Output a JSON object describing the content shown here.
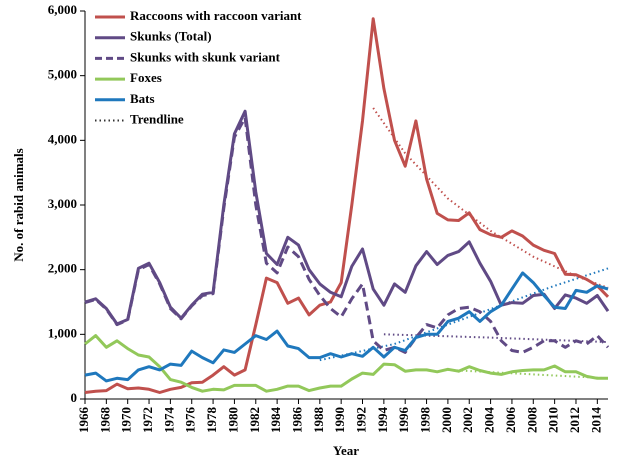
{
  "chart_data": {
    "type": "line",
    "x_label": "Year",
    "y_label": "No. of rabid animals",
    "x": [
      1966,
      1967,
      1968,
      1969,
      1970,
      1971,
      1972,
      1973,
      1974,
      1975,
      1976,
      1977,
      1978,
      1979,
      1980,
      1981,
      1982,
      1983,
      1984,
      1985,
      1986,
      1987,
      1988,
      1989,
      1990,
      1991,
      1992,
      1993,
      1994,
      1995,
      1996,
      1997,
      1998,
      1999,
      2000,
      2001,
      2002,
      2003,
      2004,
      2005,
      2006,
      2007,
      2008,
      2009,
      2010,
      2011,
      2012,
      2013,
      2014,
      2015
    ],
    "xlim": [
      1966,
      2015
    ],
    "xticks": [
      1966,
      1968,
      1970,
      1972,
      1974,
      1976,
      1978,
      1980,
      1982,
      1984,
      1986,
      1988,
      1990,
      1992,
      1994,
      1996,
      1998,
      2000,
      2002,
      2004,
      2006,
      2008,
      2010,
      2012,
      2014
    ],
    "ylim": [
      0,
      6000
    ],
    "yticks": [
      0,
      {
        "value": 1000,
        "label": "1,000"
      },
      {
        "value": 2000,
        "label": "2,000"
      },
      {
        "value": 3000,
        "label": "3,000"
      },
      {
        "value": 4000,
        "label": "4,000"
      },
      {
        "value": 5000,
        "label": "5,000"
      },
      {
        "value": 6000,
        "label": "6,000"
      }
    ],
    "series": [
      {
        "name": "Raccoons with raccoon variant",
        "color": "#c0504d",
        "dash": false,
        "values": [
          100,
          120,
          130,
          230,
          160,
          170,
          150,
          100,
          150,
          180,
          250,
          260,
          370,
          500,
          370,
          450,
          1150,
          1870,
          1800,
          1480,
          1560,
          1300,
          1450,
          1500,
          1800,
          3000,
          4300,
          5880,
          4800,
          4000,
          3600,
          4300,
          3400,
          2870,
          2770,
          2760,
          2880,
          2620,
          2540,
          2500,
          2600,
          2520,
          2380,
          2300,
          2250,
          1930,
          1920,
          1850,
          1750,
          1580
        ]
      },
      {
        "name": "Skunks (Total)",
        "color": "#604a85",
        "dash": false,
        "values": [
          1500,
          1550,
          1400,
          1160,
          1230,
          2020,
          2100,
          1800,
          1420,
          1250,
          1450,
          1620,
          1650,
          3000,
          4100,
          4450,
          3200,
          2250,
          2080,
          2500,
          2380,
          2000,
          1780,
          1650,
          1580,
          2050,
          2320,
          1700,
          1450,
          1780,
          1650,
          2060,
          2280,
          2080,
          2220,
          2280,
          2430,
          2100,
          1820,
          1450,
          1490,
          1480,
          1600,
          1620,
          1400,
          1610,
          1560,
          1480,
          1600,
          1360
        ]
      },
      {
        "name": "Skunks with skunk variant",
        "color": "#604a85",
        "dash": true,
        "values": [
          1490,
          1540,
          1390,
          1150,
          1220,
          2000,
          2080,
          1780,
          1400,
          1240,
          1440,
          1600,
          1630,
          2950,
          4050,
          4350,
          3000,
          2100,
          1950,
          2350,
          2200,
          1850,
          1600,
          1400,
          1270,
          1550,
          1780,
          900,
          750,
          800,
          720,
          950,
          1150,
          1100,
          1300,
          1400,
          1420,
          1350,
          1200,
          900,
          750,
          720,
          800,
          900,
          900,
          800,
          900,
          850,
          980,
          800
        ]
      },
      {
        "name": "Foxes",
        "color": "#92c85a",
        "dash": false,
        "values": [
          850,
          980,
          800,
          900,
          780,
          680,
          650,
          500,
          300,
          260,
          180,
          120,
          150,
          140,
          210,
          210,
          210,
          120,
          150,
          200,
          200,
          130,
          170,
          200,
          200,
          310,
          400,
          380,
          540,
          530,
          430,
          450,
          450,
          420,
          460,
          430,
          500,
          440,
          400,
          380,
          420,
          440,
          450,
          450,
          510,
          420,
          420,
          350,
          320,
          320
        ]
      },
      {
        "name": "Bats",
        "color": "#1f78bd",
        "dash": false,
        "values": [
          370,
          400,
          280,
          320,
          300,
          450,
          500,
          450,
          540,
          520,
          740,
          640,
          560,
          760,
          720,
          850,
          980,
          920,
          1050,
          820,
          780,
          640,
          640,
          700,
          650,
          700,
          660,
          800,
          650,
          800,
          750,
          950,
          1000,
          1000,
          1200,
          1250,
          1350,
          1200,
          1350,
          1450,
          1700,
          1950,
          1800,
          1600,
          1420,
          1400,
          1680,
          1650,
          1750,
          1700
        ]
      }
    ],
    "trendline_label": "Trendline",
    "trendline_color": "#333333",
    "trendlines": [
      {
        "color": "#c0504d",
        "x": [
          1993,
          1996,
          2000,
          2004,
          2008,
          2012,
          2015
        ],
        "values": [
          4500,
          3800,
          3100,
          2600,
          2200,
          1900,
          1720
        ]
      },
      {
        "color": "#604a85",
        "x": [
          1994,
          2004,
          2015
        ],
        "values": [
          1000,
          950,
          880
        ]
      },
      {
        "color": "#1f78bd",
        "x": [
          1988,
          1995,
          2000,
          2005,
          2010,
          2015
        ],
        "values": [
          600,
          850,
          1150,
          1450,
          1750,
          2020
        ]
      },
      {
        "color": "#92c85a",
        "x": [
          2000,
          2008,
          2015
        ],
        "values": [
          450,
          380,
          320
        ]
      }
    ]
  }
}
